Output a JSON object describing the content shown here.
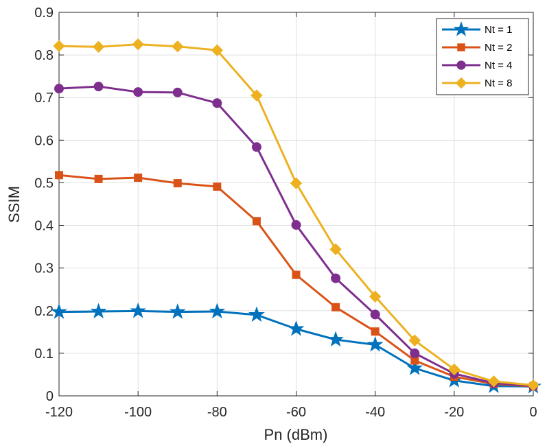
{
  "chart_data": {
    "type": "line",
    "title": "",
    "xlabel": "Pn (dBm)",
    "ylabel": "SSIM",
    "xlim": [
      -120,
      0
    ],
    "ylim": [
      0,
      0.9
    ],
    "xticks": [
      -120,
      -100,
      -80,
      -60,
      -40,
      -20,
      0
    ],
    "yticks": [
      0,
      0.1,
      0.2,
      0.3,
      0.4,
      0.5,
      0.6,
      0.7,
      0.8,
      0.9
    ],
    "xtick_labels": [
      "-120",
      "-100",
      "-80",
      "-60",
      "-40",
      "-20",
      "0"
    ],
    "ytick_labels": [
      "0",
      "0.1",
      "0.2",
      "0.3",
      "0.4",
      "0.5",
      "0.6",
      "0.7",
      "0.8",
      "0.9"
    ],
    "grid": true,
    "legend_position": "top-right",
    "x": [
      -120,
      -110,
      -100,
      -90,
      -80,
      -70,
      -60,
      -50,
      -40,
      -30,
      -20,
      -10,
      0
    ],
    "series": [
      {
        "name": "Nt = 1",
        "color": "#0072BD",
        "marker": "star",
        "values": [
          0.197,
          0.198,
          0.199,
          0.197,
          0.198,
          0.19,
          0.157,
          0.132,
          0.12,
          0.065,
          0.036,
          0.023,
          0.022
        ]
      },
      {
        "name": "Nt = 2",
        "color": "#D95319",
        "marker": "square",
        "values": [
          0.518,
          0.509,
          0.512,
          0.499,
          0.491,
          0.41,
          0.284,
          0.208,
          0.151,
          0.083,
          0.045,
          0.028,
          0.022
        ]
      },
      {
        "name": "Nt = 4",
        "color": "#7E2F8E",
        "marker": "circle",
        "values": [
          0.721,
          0.726,
          0.713,
          0.712,
          0.687,
          0.584,
          0.401,
          0.276,
          0.191,
          0.1,
          0.052,
          0.03,
          0.023
        ]
      },
      {
        "name": "Nt = 8",
        "color": "#EDB120",
        "marker": "diamond",
        "values": [
          0.821,
          0.819,
          0.825,
          0.82,
          0.811,
          0.705,
          0.499,
          0.344,
          0.233,
          0.13,
          0.062,
          0.034,
          0.025
        ]
      }
    ]
  }
}
